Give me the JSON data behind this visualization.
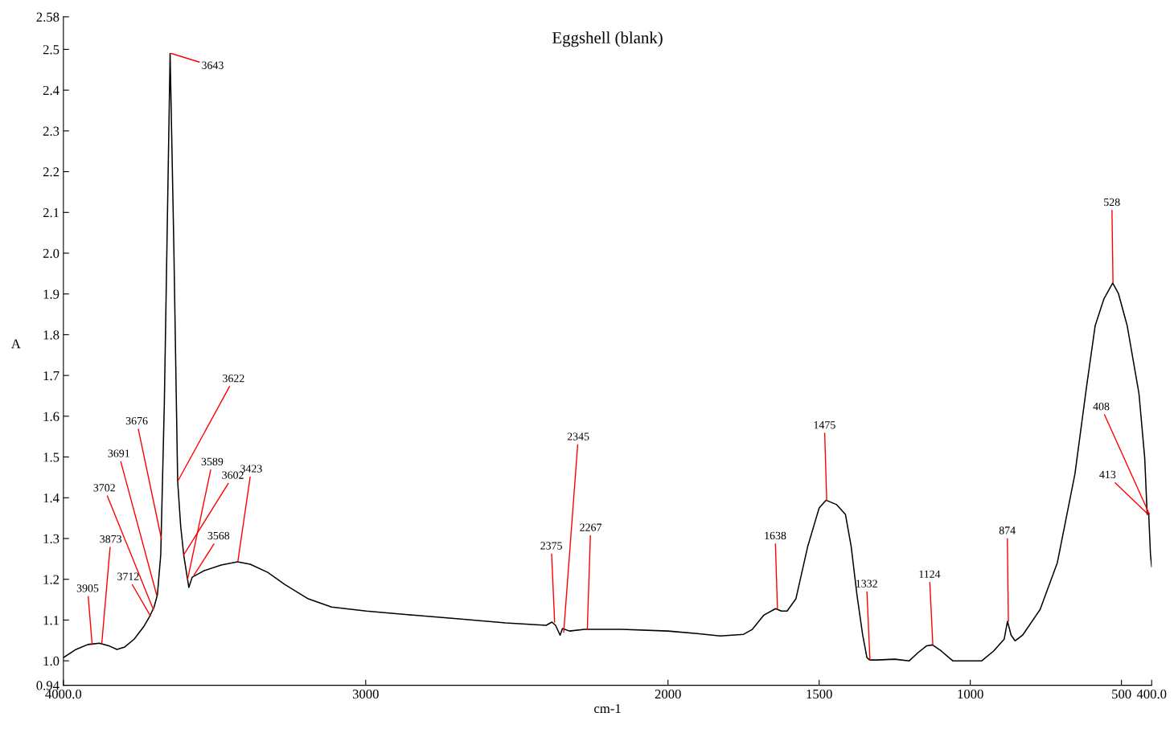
{
  "chart_data": {
    "type": "line",
    "title": "Eggshell (blank)",
    "xlabel": "cm-1",
    "ylabel": "A",
    "xlim": [
      4000,
      400
    ],
    "ylim": [
      0.94,
      2.58
    ],
    "xticks": [
      {
        "value": 4000,
        "label": "4000.0"
      },
      3000,
      2000,
      1500,
      1000,
      500,
      {
        "value": 400,
        "label": "400.0"
      }
    ],
    "yticks": [
      0.94,
      {
        "value": 1.0,
        "label": "1.0"
      },
      1.1,
      1.2,
      1.3,
      1.4,
      1.5,
      1.6,
      1.7,
      1.8,
      1.9,
      {
        "value": 2.0,
        "label": "2.0"
      },
      2.1,
      2.2,
      2.3,
      2.4,
      2.5,
      2.58
    ],
    "grid": false,
    "marker": "none",
    "line_style": "solid",
    "series": [
      {
        "color": "#000000",
        "x": [
          4000,
          3958,
          3919,
          3881,
          3850,
          3823,
          3797,
          3766,
          3735,
          3716,
          3700,
          3689,
          3678,
          3666,
          3647,
          3635,
          3622,
          3612,
          3602,
          3593,
          3585,
          3574,
          3535,
          3478,
          3424,
          3382,
          3324,
          3267,
          3190,
          3113,
          2998,
          2844,
          2691,
          2537,
          2403,
          2384,
          2372,
          2357,
          2349,
          2326,
          2276,
          2153,
          2000,
          1904,
          1827,
          1750,
          1721,
          1683,
          1644,
          1625,
          1606,
          1577,
          1538,
          1500,
          1477,
          1442,
          1413,
          1394,
          1375,
          1356,
          1342,
          1333,
          1308,
          1250,
          1202,
          1173,
          1144,
          1125,
          1096,
          1077,
          1058,
          1019,
          962,
          923,
          888,
          877,
          865,
          852,
          827,
          769,
          712,
          654,
          615,
          587,
          558,
          529,
          510,
          481,
          442,
          423,
          415,
          410,
          404,
          400
        ],
        "values": [
          1.008,
          1.028,
          1.04,
          1.043,
          1.037,
          1.028,
          1.034,
          1.053,
          1.083,
          1.107,
          1.132,
          1.162,
          1.26,
          1.635,
          2.49,
          2.03,
          1.44,
          1.33,
          1.26,
          1.217,
          1.18,
          1.205,
          1.221,
          1.235,
          1.243,
          1.237,
          1.217,
          1.187,
          1.152,
          1.132,
          1.122,
          1.112,
          1.103,
          1.093,
          1.087,
          1.095,
          1.087,
          1.063,
          1.079,
          1.073,
          1.077,
          1.077,
          1.073,
          1.067,
          1.061,
          1.065,
          1.077,
          1.112,
          1.128,
          1.122,
          1.122,
          1.152,
          1.28,
          1.375,
          1.394,
          1.383,
          1.359,
          1.28,
          1.162,
          1.063,
          1.008,
          1.002,
          1.002,
          1.004,
          1.0,
          1.02,
          1.037,
          1.039,
          1.024,
          1.012,
          1.0,
          1.0,
          1.0,
          1.024,
          1.053,
          1.097,
          1.063,
          1.049,
          1.063,
          1.126,
          1.241,
          1.458,
          1.675,
          1.822,
          1.888,
          1.927,
          1.901,
          1.822,
          1.655,
          1.497,
          1.359,
          1.363,
          1.26,
          1.231
        ]
      }
    ],
    "annotations": [
      {
        "text": "3905",
        "x": 3905,
        "y": 1.04
      },
      {
        "text": "3873",
        "x": 3873,
        "y": 1.043
      },
      {
        "text": "3712",
        "x": 3712,
        "y": 1.11
      },
      {
        "text": "3702",
        "x": 3702,
        "y": 1.125
      },
      {
        "text": "3691",
        "x": 3691,
        "y": 1.16
      },
      {
        "text": "3676",
        "x": 3676,
        "y": 1.3
      },
      {
        "text": "3643",
        "x": 3643,
        "y": 2.49
      },
      {
        "text": "3622",
        "x": 3622,
        "y": 1.44
      },
      {
        "text": "3602",
        "x": 3602,
        "y": 1.26
      },
      {
        "text": "3589",
        "x": 3589,
        "y": 1.2
      },
      {
        "text": "3568",
        "x": 3568,
        "y": 1.21
      },
      {
        "text": "3423",
        "x": 3423,
        "y": 1.243
      },
      {
        "text": "2375",
        "x": 2375,
        "y": 1.095
      },
      {
        "text": "2345",
        "x": 2345,
        "y": 1.07
      },
      {
        "text": "2267",
        "x": 2267,
        "y": 1.077
      },
      {
        "text": "1638",
        "x": 1638,
        "y": 1.128
      },
      {
        "text": "1475",
        "x": 1475,
        "y": 1.394
      },
      {
        "text": "1332",
        "x": 1332,
        "y": 1.002
      },
      {
        "text": "1124",
        "x": 1124,
        "y": 1.039
      },
      {
        "text": "874",
        "x": 874,
        "y": 1.097
      },
      {
        "text": "528",
        "x": 528,
        "y": 1.927
      },
      {
        "text": "408",
        "x": 408,
        "y": 1.36
      },
      {
        "text": "413",
        "x": 413,
        "y": 1.36
      }
    ]
  }
}
